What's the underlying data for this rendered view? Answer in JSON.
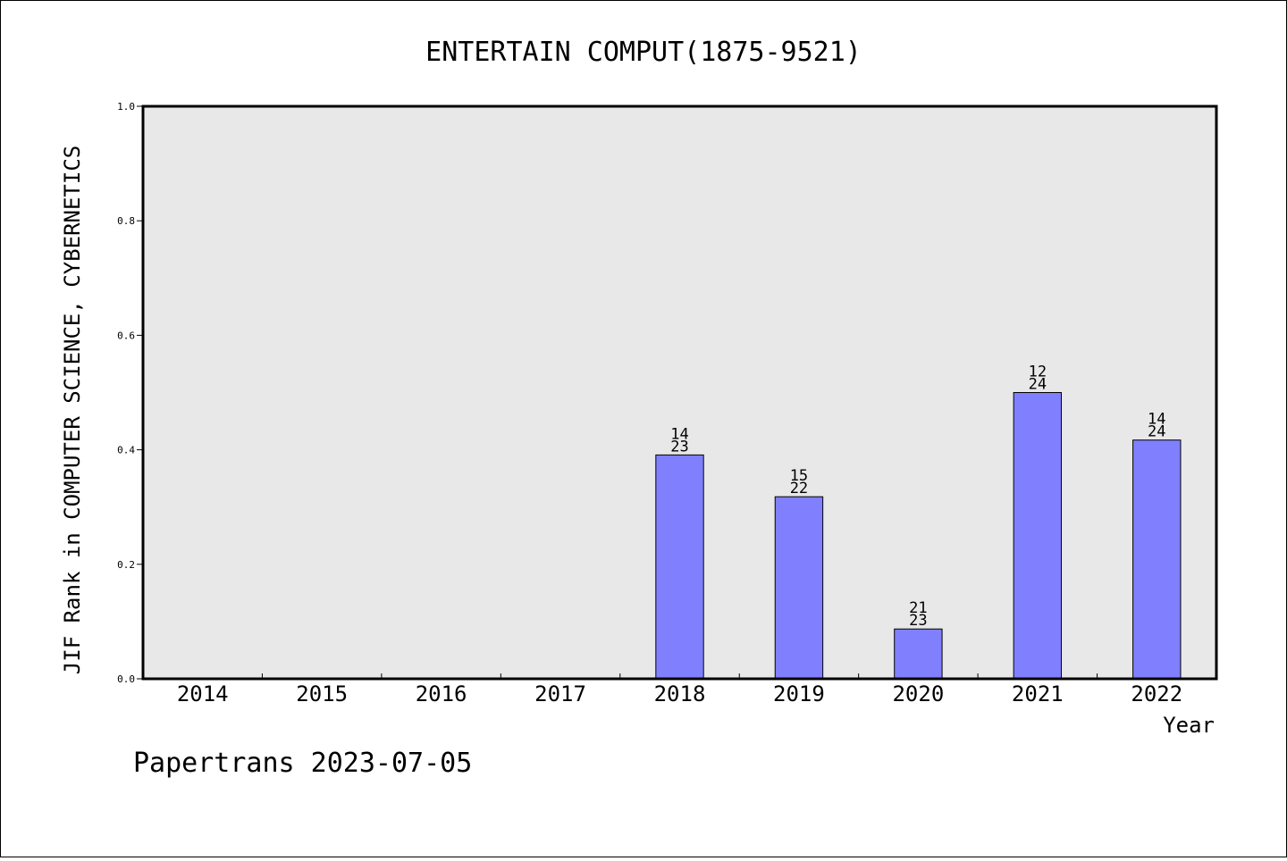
{
  "chart_data": {
    "type": "bar",
    "title": "ENTERTAIN COMPUT(1875-9521)",
    "ylabel": "JIF Rank in COMPUTER SCIENCE, CYBERNETICS",
    "xlabel": "Year",
    "ylim": [
      0,
      1.0
    ],
    "yticks": [
      "0.0",
      "0.2",
      "0.4",
      "0.6",
      "0.8",
      "1.0"
    ],
    "grid": false,
    "categories": [
      "2014",
      "2015",
      "2016",
      "2017",
      "2018",
      "2019",
      "2020",
      "2021",
      "2022"
    ],
    "values": [
      null,
      null,
      null,
      null,
      0.391,
      0.318,
      0.087,
      0.5,
      0.417
    ],
    "rank_labels": [
      null,
      null,
      null,
      null,
      {
        "rank": "14",
        "total": "23"
      },
      {
        "rank": "15",
        "total": "22"
      },
      {
        "rank": "21",
        "total": "23"
      },
      {
        "rank": "12",
        "total": "24"
      },
      {
        "rank": "14",
        "total": "24"
      }
    ],
    "bar_color": "#8080ff",
    "plot_background": "#e8e8e8"
  },
  "footer": "Papertrans 2023-07-05"
}
